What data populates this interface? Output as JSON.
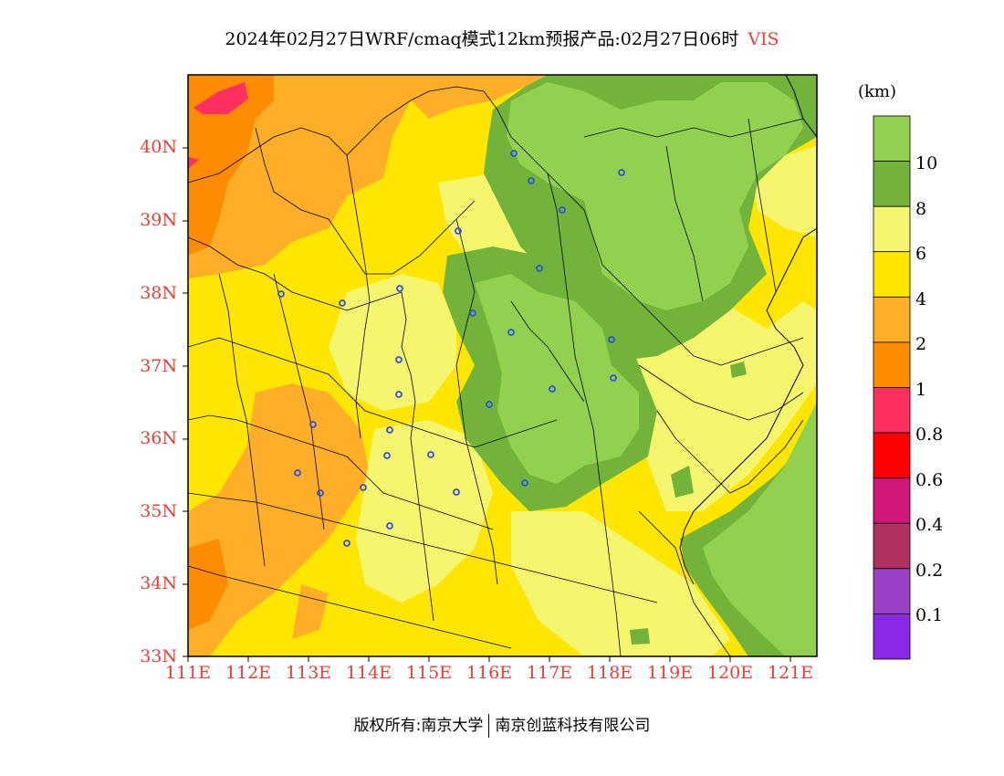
{
  "header": {
    "title": "2024年02月27日WRF/cmaq模式12km预报产品:02月27日06时",
    "variable": "VIS"
  },
  "map": {
    "lat_labels": [
      "40N",
      "39N",
      "38N",
      "37N",
      "36N",
      "35N",
      "34N",
      "33N"
    ],
    "lon_labels": [
      "111E",
      "112E",
      "113E",
      "114E",
      "115E",
      "116E",
      "117E",
      "118E",
      "119E",
      "120E",
      "121E"
    ],
    "field_colors": {
      "lt1": "#ff8c00",
      "1to2": "#ff8c00",
      "2to4": "#ffae28",
      "4to6": "#ffe600",
      "6to8": "#f5f56e",
      "8to10": "#72b43a",
      "gt10": "#92d050",
      "city_marker": "#2b50e8",
      "boundaries": "#000000"
    }
  },
  "colorbar": {
    "unit": "(km)",
    "levels": [
      "10",
      "8",
      "6",
      "4",
      "2",
      "1",
      "0.8",
      "0.6",
      "0.4",
      "0.2",
      "0.1"
    ],
    "colors": [
      "#92d050",
      "#72b43a",
      "#f5f56e",
      "#ffe600",
      "#ffae28",
      "#ff8c00",
      "#ff3060",
      "#ff0000",
      "#d0187a",
      "#b03060",
      "#9a40c8",
      "#8a2ae6"
    ]
  },
  "footer": {
    "left": "版权所有:南京大学",
    "right": "南京创蓝科技有限公司"
  }
}
